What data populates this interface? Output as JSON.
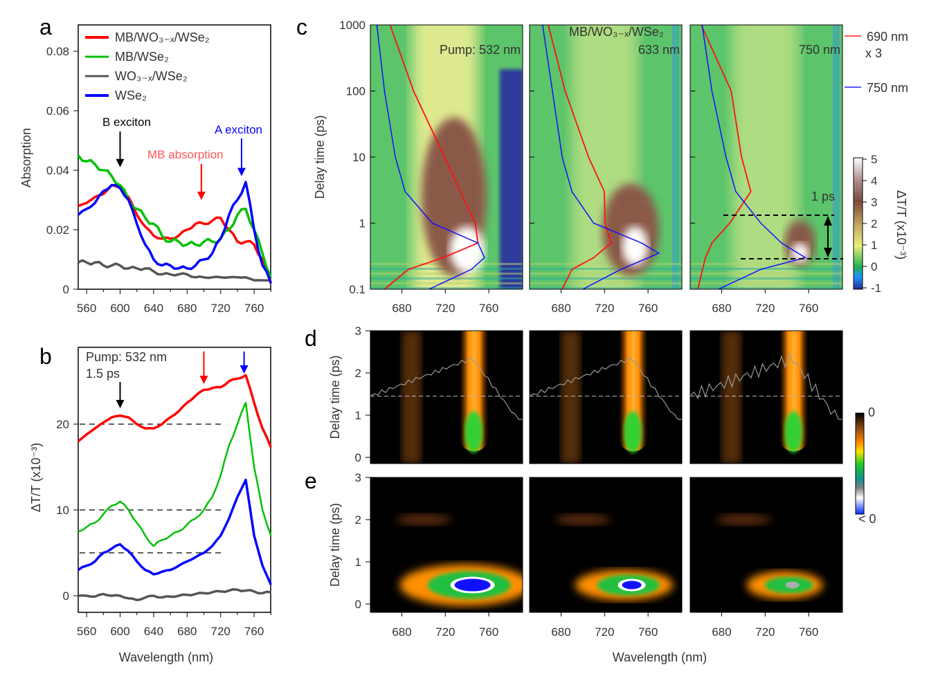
{
  "panel_labels": [
    "a",
    "b",
    "c",
    "d",
    "e"
  ],
  "chart_data": [
    {
      "id": "a",
      "type": "line",
      "xlabel": "",
      "ylabel": "Absorption",
      "xlim": [
        550,
        780
      ],
      "ylim": [
        0,
        0.089
      ],
      "xticks": [
        560,
        600,
        640,
        680,
        720,
        760
      ],
      "xtick_labels": [
        "560",
        "600",
        "640",
        "680",
        "720",
        "760"
      ],
      "yticks": [
        0,
        0.02,
        0.04,
        0.06,
        0.08
      ],
      "ytick_labels": [
        "0",
        "0.02",
        "0.04",
        "0.06",
        "0.08"
      ],
      "legend_placement": "top-left",
      "x": [
        550,
        560,
        570,
        580,
        590,
        600,
        610,
        620,
        630,
        640,
        650,
        660,
        670,
        680,
        690,
        700,
        710,
        720,
        730,
        740,
        750,
        760,
        770,
        780
      ],
      "series": [
        {
          "name": "MB/WO₃₋ₓ/WSe₂",
          "color": "#ff0000",
          "values": [
            0.028,
            0.029,
            0.031,
            0.032,
            0.035,
            0.034,
            0.031,
            0.025,
            0.021,
            0.018,
            0.017,
            0.017,
            0.018,
            0.02,
            0.022,
            0.022,
            0.023,
            0.024,
            0.02,
            0.016,
            0.016,
            0.015,
            0.01,
            0.002
          ]
        },
        {
          "name": "MB/WSe₂",
          "color": "#00c000",
          "values": [
            0.045,
            0.043,
            0.042,
            0.04,
            0.038,
            0.035,
            0.03,
            0.027,
            0.024,
            0.022,
            0.018,
            0.016,
            0.016,
            0.015,
            0.015,
            0.016,
            0.016,
            0.017,
            0.02,
            0.025,
            0.027,
            0.02,
            0.012,
            0.004
          ]
        },
        {
          "name": "WO₃₋ₓ/WSe₂",
          "color": "#555555",
          "values": [
            0.009,
            0.009,
            0.009,
            0.008,
            0.008,
            0.008,
            0.007,
            0.007,
            0.007,
            0.006,
            0.005,
            0.005,
            0.005,
            0.005,
            0.004,
            0.004,
            0.004,
            0.004,
            0.004,
            0.004,
            0.004,
            0.003,
            0.003,
            0.003
          ]
        },
        {
          "name": "WSe₂",
          "color": "#0000ff",
          "values": [
            0.025,
            0.027,
            0.029,
            0.033,
            0.035,
            0.034,
            0.03,
            0.022,
            0.015,
            0.01,
            0.008,
            0.008,
            0.007,
            0.007,
            0.008,
            0.01,
            0.012,
            0.017,
            0.025,
            0.03,
            0.036,
            0.02,
            0.008,
            0.002
          ]
        }
      ],
      "annotations": [
        {
          "text": "B exciton",
          "color": "#000000",
          "arrow_x": 600,
          "arrow_y": 0.041
        },
        {
          "text": "MB absorption",
          "color": "#ff5555",
          "arrow_x": 697,
          "arrow_y": 0.03
        },
        {
          "text": "A exciton",
          "color": "#0000ff",
          "arrow_x": 745,
          "arrow_y": 0.038
        }
      ]
    },
    {
      "id": "b",
      "type": "line",
      "xlabel": "Wavelength (nm)",
      "ylabel": "ΔT/T (x10⁻³)",
      "xlim": [
        550,
        780
      ],
      "ylim": [
        -1.9,
        28.9
      ],
      "xticks": [
        560,
        600,
        640,
        680,
        720,
        760
      ],
      "xtick_labels": [
        "560",
        "600",
        "640",
        "680",
        "720",
        "760"
      ],
      "yticks": [
        0,
        10,
        20
      ],
      "ytick_labels": [
        "0",
        "10",
        "20"
      ],
      "text": [
        "Pump: 532 nm",
        "1.5 ps"
      ],
      "reference_lines": [
        20,
        10,
        5
      ],
      "x": [
        550,
        560,
        570,
        580,
        590,
        600,
        610,
        620,
        630,
        640,
        650,
        660,
        670,
        680,
        690,
        700,
        710,
        720,
        730,
        740,
        750,
        760,
        770,
        780
      ],
      "series": [
        {
          "color": "#ff0000",
          "values": [
            18,
            18.8,
            19.5,
            20.2,
            20.8,
            21,
            20.8,
            20,
            19.5,
            19.5,
            20,
            20.8,
            21.5,
            22.5,
            23.3,
            24,
            24.2,
            24.3,
            25,
            25.3,
            25.7,
            22.5,
            19.5,
            17.3
          ]
        },
        {
          "color": "#00c000",
          "values": [
            7.5,
            8,
            8.5,
            9.5,
            10.5,
            11,
            10,
            8.5,
            7,
            5.8,
            6.5,
            7,
            7.5,
            8.3,
            9,
            10,
            11.5,
            14,
            17.5,
            20,
            22.5,
            15,
            10,
            7
          ]
        },
        {
          "color": "#0000ff",
          "values": [
            3,
            3.5,
            4,
            5,
            5.5,
            6,
            5.2,
            4,
            3,
            2.5,
            2.8,
            3,
            3.5,
            4,
            4.5,
            5,
            5.8,
            7,
            9,
            11.5,
            13.5,
            7,
            3.5,
            1.3
          ]
        },
        {
          "color": "#555555",
          "values": [
            0,
            0,
            -0.1,
            0.2,
            0,
            0,
            -0.3,
            -0.5,
            -0.2,
            0,
            -0.2,
            -0.1,
            0,
            0.1,
            0.2,
            0.3,
            0.4,
            0.5,
            0.6,
            0.7,
            0.6,
            0.5,
            0.3,
            0.4
          ]
        }
      ],
      "arrows": [
        {
          "x": 600,
          "color": "#000000"
        },
        {
          "x": 700,
          "color": "#ff0000"
        },
        {
          "x": 748,
          "color": "#0000ff"
        }
      ]
    },
    {
      "id": "c",
      "type": "heatmap",
      "ylabel": "Delay time (ps)",
      "yscale": "log",
      "ylim": [
        0.1,
        1000
      ],
      "yticks": [
        0.1,
        1,
        10,
        100,
        1000
      ],
      "ytick_labels": [
        "0.1",
        "1",
        "10",
        "100",
        "1000"
      ],
      "xlim": [
        651,
        791
      ],
      "xticks": [
        680,
        720,
        760
      ],
      "xtick_labels": [
        "680",
        "720",
        "760"
      ],
      "panels": [
        {
          "text": "Pump: 532 nm",
          "title": ""
        },
        {
          "text": "633 nm",
          "title": "MB/WO₃₋ₓ/WSe₂"
        },
        {
          "text": "750 nm",
          "title": "",
          "marker_text": "1 ps"
        }
      ],
      "trace_legend": [
        {
          "name": "690 nm",
          "note": "x 3",
          "color": "#ff0000"
        },
        {
          "name": "750 nm",
          "color": "#0000ff"
        }
      ],
      "colorbar": {
        "label": "ΔT/T (x10⁻³)",
        "range": [
          -1,
          5
        ],
        "ticks": [
          "-1",
          "0",
          "1",
          "2",
          "3",
          "4",
          "5"
        ]
      }
    },
    {
      "id": "d",
      "type": "heatmap",
      "ylabel": "Delay time (ps)",
      "ylim": [
        -0.15,
        3.15
      ],
      "yticks": [
        0,
        1,
        2,
        3
      ],
      "ytick_labels": [
        "0",
        "1",
        "2",
        "3"
      ],
      "xlim": [
        651,
        791
      ],
      "colorbar": {
        "top_label": "0",
        "bottom_label": "< 0"
      }
    },
    {
      "id": "e",
      "type": "heatmap",
      "ylabel": "Delay time (ps)",
      "xlabel": "Wavelength (nm)",
      "ylim": [
        -0.2,
        3.0
      ],
      "yticks": [
        0,
        1,
        2,
        3
      ],
      "ytick_labels": [
        "0",
        "1",
        "2",
        "3"
      ],
      "xlim": [
        651,
        791
      ],
      "xticks": [
        680,
        720,
        760
      ],
      "xtick_labels": [
        "680",
        "720",
        "760"
      ]
    }
  ]
}
